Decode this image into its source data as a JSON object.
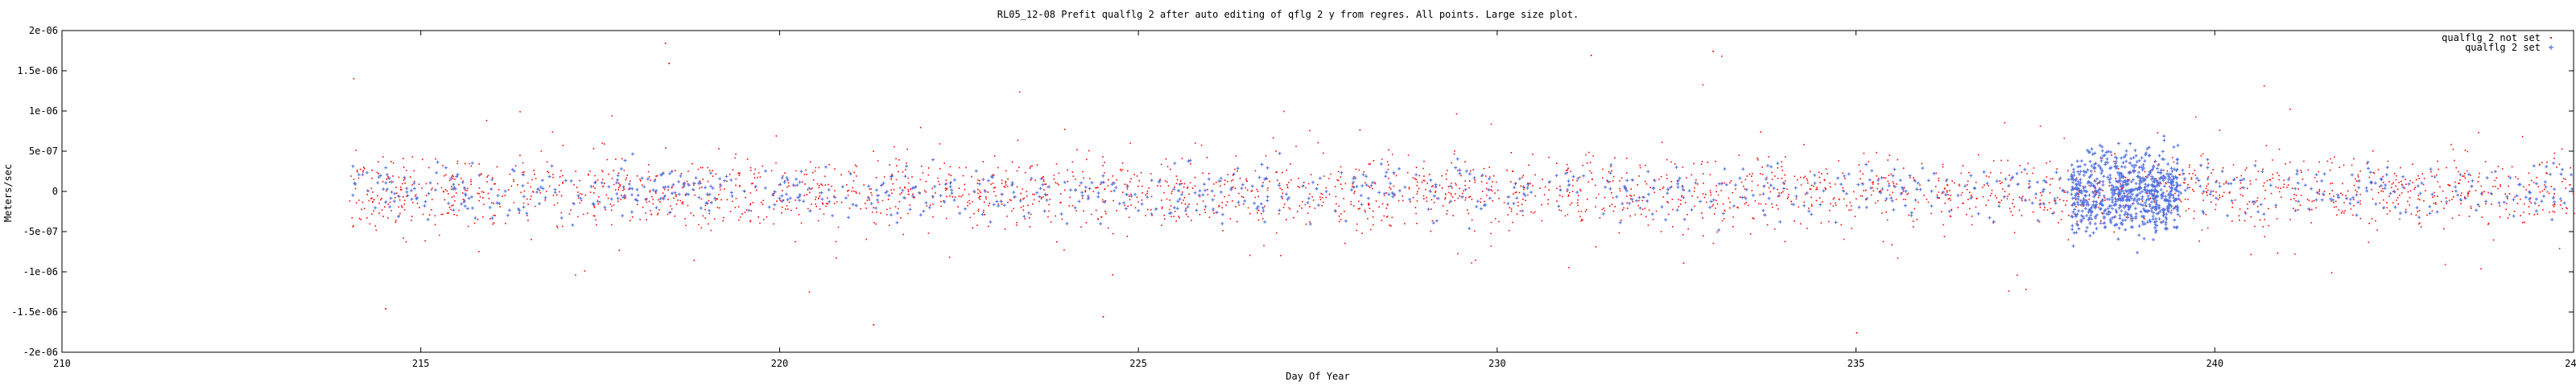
{
  "chart_data": {
    "type": "scatter",
    "title": "RL05_12-08 Prefit qualflg 2 after auto editing of qflg 2   y from regres.  All points.  Large size plot.",
    "xlabel": "Day Of Year",
    "ylabel": "Meters/sec",
    "xlim": [
      210,
      245
    ],
    "ylim": [
      -2e-06,
      2e-06
    ],
    "x_ticks": [
      210,
      215,
      220,
      225,
      230,
      235,
      240,
      245
    ],
    "x_tick_labels": [
      "210",
      "215",
      "220",
      "225",
      "230",
      "235",
      "240",
      "245"
    ],
    "y_ticks": [
      -2e-06,
      -1.5e-06,
      -1e-06,
      -5e-07,
      0,
      5e-07,
      1e-06,
      1.5e-06,
      2e-06
    ],
    "y_tick_labels": [
      "-2e-06",
      "-1.5e-06",
      "-1e-06",
      "-5e-07",
      "0",
      "5e-07",
      "1e-06",
      "1.5e-06",
      "2e-06"
    ],
    "grid": false,
    "legend_position": "top-right",
    "series": [
      {
        "name": "qualflg 2 not set",
        "color": "#ff0000",
        "marker": "dot",
        "x_range": [
          214.0,
          245.0
        ],
        "core_spread": 3.5e-07,
        "notable_points": [
          {
            "x": 218.4,
            "y": 1.85e-06
          },
          {
            "x": 218.45,
            "y": 1.6e-06
          },
          {
            "x": 231.3,
            "y": 1.7e-06
          },
          {
            "x": 233.0,
            "y": 1.75e-06
          },
          {
            "x": 235.0,
            "y": -1.75e-06
          },
          {
            "x": 224.5,
            "y": -1.55e-06
          },
          {
            "x": 221.3,
            "y": -1.65e-06
          },
          {
            "x": 214.5,
            "y": -1.45e-06
          }
        ]
      },
      {
        "name": "qualflg 2 set",
        "color": "#4f6fdf",
        "marker": "plus",
        "x_range": [
          214.0,
          245.0
        ],
        "core_spread": 2.5e-07,
        "dense_cluster_x": [
          238.0,
          239.5
        ],
        "dense_cluster_spread": 5e-07
      }
    ]
  }
}
